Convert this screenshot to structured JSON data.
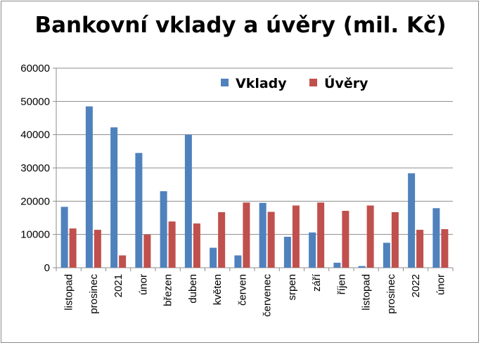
{
  "chart_data": {
    "type": "bar",
    "title": "Bankovní vklady a úvěry (mil. Kč)",
    "xlabel": "",
    "ylabel": "",
    "ylim": [
      0,
      60000
    ],
    "yticks": [
      "0",
      "10000",
      "20000",
      "30000",
      "40000",
      "50000",
      "60000"
    ],
    "categories": [
      "listopad",
      "prosinec",
      "2021",
      "únor",
      "březen",
      "duben",
      "květen",
      "červen",
      "červenec",
      "srpen",
      "září",
      "říjen",
      "listopad",
      "prosinec",
      "2022",
      "únor"
    ],
    "series": [
      {
        "name": "Vklady",
        "color": "#4f81bd",
        "values": [
          18300,
          48500,
          42200,
          34500,
          23000,
          40000,
          6000,
          3700,
          19500,
          9300,
          10600,
          1500,
          500,
          7500,
          28400,
          17900
        ]
      },
      {
        "name": "Úvěry",
        "color": "#c0504d",
        "values": [
          11800,
          11400,
          3700,
          10000,
          13900,
          13300,
          16700,
          19600,
          16800,
          18700,
          19600,
          17100,
          18700,
          16700,
          11400,
          11600
        ]
      }
    ],
    "grid": true,
    "legend_position": "top-right"
  }
}
